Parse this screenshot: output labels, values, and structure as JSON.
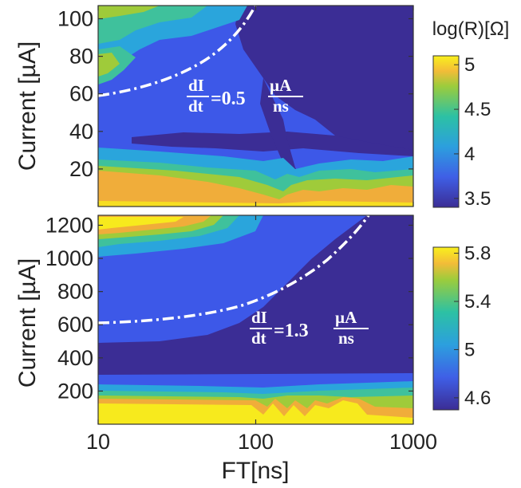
{
  "chart_data": [
    {
      "type": "heatmap",
      "title": "",
      "xlabel": "",
      "ylabel": "Current [µA]",
      "xscale": "log",
      "xlim": [
        10,
        1000
      ],
      "ylim": [
        0,
        107
      ],
      "yticks": [
        20,
        40,
        60,
        80,
        100
      ],
      "xticks": [
        10,
        100,
        1000
      ],
      "colorbar": {
        "label": "log(R)[Ω]",
        "range": [
          3.4,
          5.1
        ],
        "ticks": [
          3.5,
          4,
          4.5,
          5
        ]
      },
      "colors": {
        "low": "#3b2d95",
        "mid_low": "#3d58e8",
        "mid": "#2aa5dc",
        "mid_high": "#3fc19c",
        "high": "#9fcb3a",
        "higher": "#f0ad3a",
        "max": "#f7ea1d"
      },
      "regions": [
        {
          "description": "high resistance band at low current",
          "current_range": [
            0,
            25
          ],
          "value": 4.7
        },
        {
          "description": "high resistance at high current, short FT",
          "current_range": [
            65,
            107
          ],
          "value": 4.3
        },
        {
          "description": "low resistance at long FT",
          "value": 3.5
        }
      ],
      "threshold_curve": {
        "equation_text": [
          "dI",
          "dt",
          "=0.5",
          "µA",
          "ns"
        ],
        "rate_uA_per_ns": 0.5,
        "x": [
          10,
          20,
          40,
          60,
          80,
          100
        ],
        "y": [
          60,
          65,
          75,
          85,
          96,
          107
        ]
      }
    },
    {
      "type": "heatmap",
      "title": "",
      "xlabel": "FT[ns]",
      "ylabel": "Current [µA]",
      "xscale": "log",
      "xlim": [
        10,
        1000
      ],
      "ylim": [
        0,
        1260
      ],
      "yticks": [
        200,
        400,
        600,
        800,
        1000,
        1200
      ],
      "xticks": [
        10,
        100,
        1000
      ],
      "xticklabels": [
        "10",
        "100",
        "1000"
      ],
      "colorbar": {
        "label": "",
        "range": [
          4.5,
          5.85
        ],
        "ticks": [
          4.6,
          5,
          5.4,
          5.8
        ],
        "ticklabels": [
          "4.6",
          "5",
          "5.4",
          "5.8"
        ]
      },
      "regions": [
        {
          "description": "high resistance band at low current",
          "current_range": [
            0,
            200
          ],
          "value": 5.7
        },
        {
          "description": "high resistance at high current, short FT",
          "current_range": [
            950,
            1260
          ],
          "value": 5.5
        },
        {
          "description": "low resistance at long FT",
          "value": 4.6
        }
      ],
      "threshold_curve": {
        "equation_text": [
          "dI",
          "dt",
          "=1.3",
          "µA",
          "ns"
        ],
        "rate_uA_per_ns": 1.3,
        "x": [
          10,
          30,
          60,
          100,
          200,
          400,
          500
        ],
        "y": [
          605,
          630,
          680,
          760,
          930,
          1150,
          1260
        ]
      }
    }
  ]
}
